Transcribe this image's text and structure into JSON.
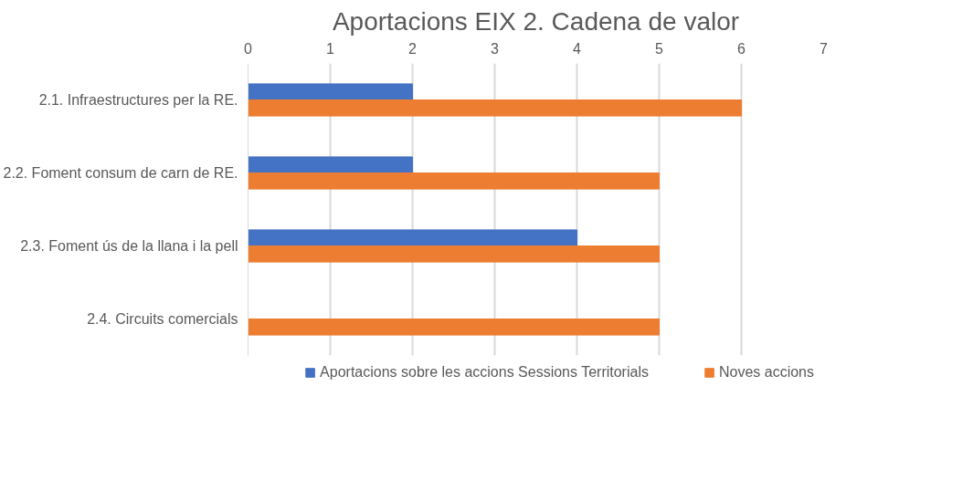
{
  "chart_data": {
    "type": "bar",
    "orientation": "horizontal",
    "title": "Aportacions EIX 2. Cadena de valor",
    "categories": [
      "2.1. Infraestructures per la RE.",
      "2.2. Foment consum de carn de RE.",
      "2.3. Foment ús de la llana i la pell",
      "2.4. Circuits comercials"
    ],
    "series": [
      {
        "name": "Aportacions sobre les accions Sessions Territorials",
        "color": "#4472c4",
        "values": [
          2,
          2,
          4,
          null
        ]
      },
      {
        "name": "Noves accions",
        "color": "#ed7d31",
        "values": [
          6,
          5,
          5,
          5
        ]
      }
    ],
    "xlim": [
      0,
      7
    ],
    "xticks": [
      0,
      1,
      2,
      3,
      4,
      5,
      6,
      7
    ],
    "grid": "x",
    "legend": "bottom"
  }
}
